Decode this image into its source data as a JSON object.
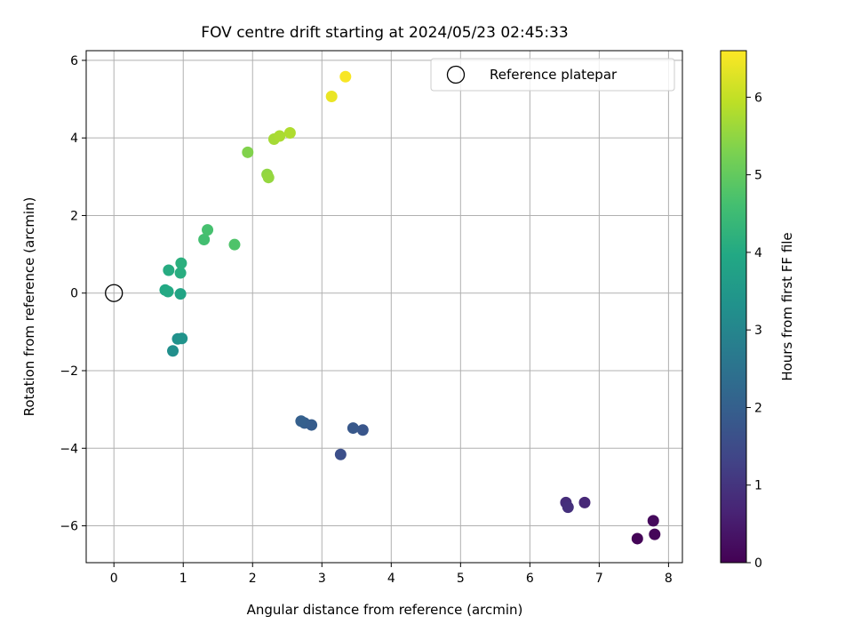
{
  "chart_data": {
    "type": "scatter",
    "title": "FOV centre drift starting at 2024/05/23 02:45:33",
    "xlabel": "Angular distance from reference (arcmin)",
    "ylabel": "Rotation from reference (arcmin)",
    "xlim": [
      -0.4,
      8.2
    ],
    "ylim": [
      -6.95,
      6.25
    ],
    "xticks": [
      "0",
      "1",
      "2",
      "3",
      "4",
      "5",
      "6",
      "7",
      "8"
    ],
    "xtick_values": [
      0,
      1,
      2,
      3,
      4,
      5,
      6,
      7,
      8
    ],
    "yticks": [
      "−6",
      "−4",
      "−2",
      "0",
      "2",
      "4",
      "6"
    ],
    "ytick_values": [
      -6,
      -4,
      -2,
      0,
      2,
      4,
      6
    ],
    "grid": true,
    "legend_position": "upper right",
    "colormap": "viridis",
    "colorbar": {
      "label": "Hours from first FF file",
      "range": [
        0,
        6.6
      ],
      "ticks": [
        "0",
        "1",
        "2",
        "3",
        "4",
        "5",
        "6"
      ],
      "tick_values": [
        0,
        1,
        2,
        3,
        4,
        5,
        6
      ]
    },
    "reference": {
      "name": "Reference platepar",
      "x": 0,
      "y": 0
    },
    "points": [
      {
        "x": 7.55,
        "y": -6.33,
        "t": 0.05
      },
      {
        "x": 7.8,
        "y": -6.22,
        "t": 0.1
      },
      {
        "x": 7.78,
        "y": -5.87,
        "t": 0.15
      },
      {
        "x": 6.79,
        "y": -5.4,
        "t": 0.75
      },
      {
        "x": 6.52,
        "y": -5.4,
        "t": 0.85
      },
      {
        "x": 6.55,
        "y": -5.52,
        "t": 0.9
      },
      {
        "x": 3.27,
        "y": -4.16,
        "t": 1.6
      },
      {
        "x": 3.59,
        "y": -3.53,
        "t": 1.75
      },
      {
        "x": 3.45,
        "y": -3.48,
        "t": 1.8
      },
      {
        "x": 2.85,
        "y": -3.4,
        "t": 1.9
      },
      {
        "x": 2.75,
        "y": -3.35,
        "t": 1.95
      },
      {
        "x": 2.7,
        "y": -3.3,
        "t": 2.0
      },
      {
        "x": 0.85,
        "y": -1.49,
        "t": 3.25
      },
      {
        "x": 0.92,
        "y": -1.18,
        "t": 3.3
      },
      {
        "x": 0.98,
        "y": -1.17,
        "t": 3.35
      },
      {
        "x": 0.96,
        "y": -0.02,
        "t": 3.85
      },
      {
        "x": 0.74,
        "y": 0.08,
        "t": 3.95
      },
      {
        "x": 0.78,
        "y": 0.04,
        "t": 4.0
      },
      {
        "x": 0.79,
        "y": 0.59,
        "t": 4.05
      },
      {
        "x": 0.96,
        "y": 0.52,
        "t": 4.1
      },
      {
        "x": 0.97,
        "y": 0.77,
        "t": 4.15
      },
      {
        "x": 1.3,
        "y": 1.38,
        "t": 4.6
      },
      {
        "x": 1.35,
        "y": 1.63,
        "t": 4.65
      },
      {
        "x": 1.74,
        "y": 1.25,
        "t": 4.75
      },
      {
        "x": 1.93,
        "y": 3.63,
        "t": 5.35
      },
      {
        "x": 2.21,
        "y": 3.06,
        "t": 5.5
      },
      {
        "x": 2.23,
        "y": 2.98,
        "t": 5.55
      },
      {
        "x": 2.31,
        "y": 3.97,
        "t": 5.7
      },
      {
        "x": 2.39,
        "y": 4.05,
        "t": 5.75
      },
      {
        "x": 2.54,
        "y": 4.13,
        "t": 5.8
      },
      {
        "x": 3.14,
        "y": 5.07,
        "t": 6.4
      },
      {
        "x": 3.34,
        "y": 5.58,
        "t": 6.55
      }
    ]
  }
}
